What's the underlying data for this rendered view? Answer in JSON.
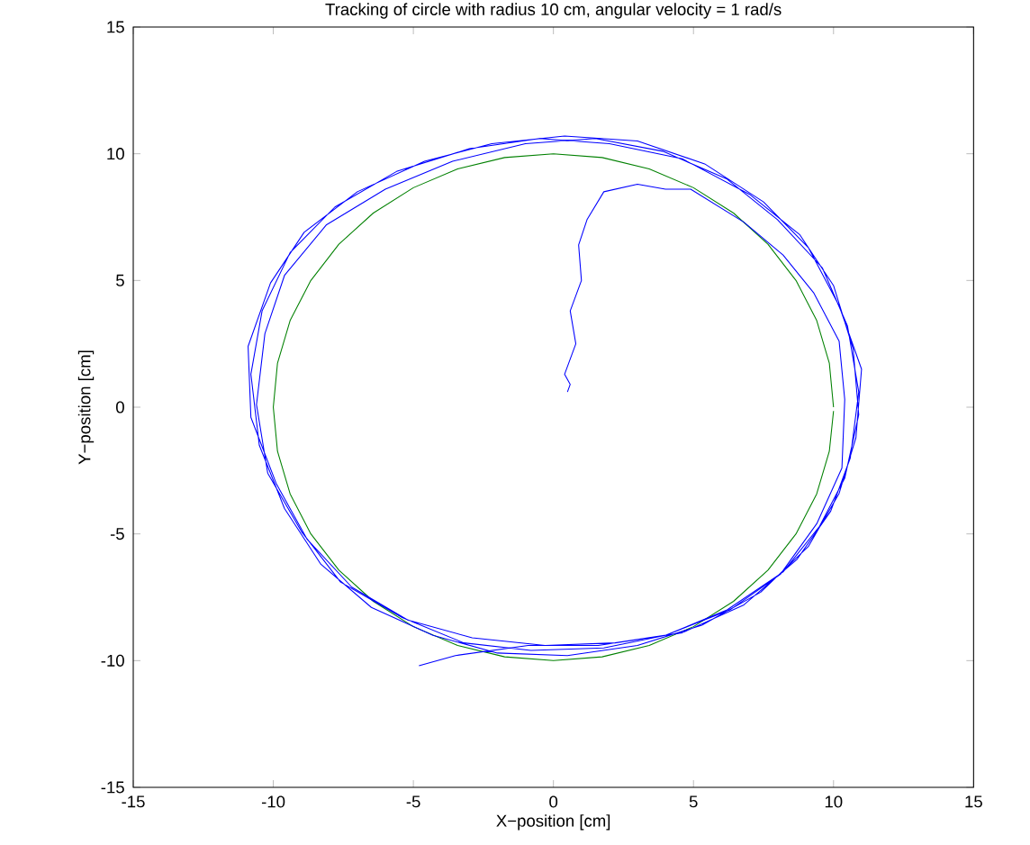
{
  "chart_data": {
    "type": "line",
    "title": "Tracking of circle with radius 10 cm, angular velocity = 1 rad/s",
    "xlabel": "X−position [cm]",
    "ylabel": "Y−position [cm]",
    "xlim": [
      -15,
      15
    ],
    "ylim": [
      -15,
      15
    ],
    "xticks": [
      -15,
      -10,
      -5,
      0,
      5,
      10,
      15
    ],
    "yticks": [
      -15,
      -10,
      -5,
      0,
      5,
      10,
      15
    ],
    "grid": false,
    "marker": "none",
    "line_style": "solid",
    "series": [
      {
        "color": "#008000",
        "x": [
          10,
          9.85,
          9.4,
          8.66,
          7.66,
          6.43,
          5.0,
          3.42,
          1.74,
          0,
          -1.74,
          -3.42,
          -5.0,
          -6.43,
          -7.66,
          -8.66,
          -9.4,
          -9.85,
          -10,
          -9.85,
          -9.4,
          -8.66,
          -7.66,
          -6.43,
          -5.0,
          -3.42,
          -1.74,
          0,
          1.74,
          3.42,
          5.0,
          6.43,
          7.66,
          8.66,
          9.4,
          9.85,
          10
        ],
        "values": [
          0,
          1.74,
          3.42,
          5.0,
          6.43,
          7.66,
          8.66,
          9.4,
          9.85,
          10,
          9.85,
          9.4,
          8.66,
          7.66,
          6.43,
          5.0,
          3.42,
          1.74,
          0,
          -1.74,
          -3.42,
          -5.0,
          -6.43,
          -7.66,
          -8.66,
          -9.4,
          -9.85,
          -10,
          -9.85,
          -9.4,
          -8.66,
          -7.66,
          -6.43,
          -5.0,
          -3.42,
          -1.74,
          -0.15
        ]
      },
      {
        "color": "#0000ff",
        "x": [
          0.5,
          0.6,
          0.4,
          0.8,
          0.6,
          1.0,
          0.9,
          1.2,
          1.8,
          3.0,
          4.0,
          4.9,
          6.8,
          8.2,
          9.3,
          10.2,
          10.4,
          10.3,
          9.4,
          8.1,
          6.3,
          4.0,
          1.8,
          -0.8,
          -3.2,
          -5.4,
          -7.6,
          -9.0,
          -10.2,
          -10.6,
          -10.3,
          -9.6,
          -8.1,
          -6.0,
          -3.6,
          -1.0,
          1.5,
          3.9,
          6.2,
          8.0,
          9.6,
          10.5,
          10.9,
          10.6,
          9.9,
          8.7,
          6.8,
          4.6,
          2.2,
          -0.3,
          -2.9,
          -5.2,
          -7.2,
          -8.8,
          -9.9,
          -10.8,
          -10.9,
          -10.1,
          -8.9,
          -7.0,
          -4.6,
          -2.2,
          0.4,
          3.0,
          5.4,
          7.5,
          9.1,
          10.2,
          11.0,
          10.8,
          10.2,
          9.1,
          7.4,
          5.3,
          3.0,
          0.5,
          -2.0,
          -4.3,
          -6.5,
          -8.3,
          -9.6,
          -10.5,
          -10.8,
          -10.4,
          -9.4,
          -7.8,
          -5.6,
          -3.0,
          -0.5,
          2.0,
          4.6,
          7.0,
          8.8,
          10.0,
          10.7,
          10.9,
          10.4,
          9.5,
          8.2,
          6.2,
          4.0,
          1.6,
          -0.9,
          -3.5,
          -4.8
        ],
        "values": [
          0.6,
          0.9,
          1.3,
          2.5,
          3.8,
          5.0,
          6.4,
          7.4,
          8.5,
          8.8,
          8.6,
          8.6,
          7.3,
          6.0,
          4.5,
          2.6,
          0.3,
          -2.4,
          -4.6,
          -6.6,
          -8.0,
          -9.0,
          -9.5,
          -9.6,
          -9.3,
          -8.3,
          -6.9,
          -4.9,
          -2.6,
          0.1,
          2.9,
          5.2,
          7.2,
          8.6,
          9.7,
          10.4,
          10.6,
          10.1,
          9.0,
          7.4,
          5.5,
          3.2,
          0.6,
          -2.0,
          -4.1,
          -6.0,
          -7.8,
          -8.9,
          -9.3,
          -9.4,
          -9.1,
          -8.4,
          -7.1,
          -5.2,
          -3.0,
          -0.4,
          2.4,
          4.9,
          6.9,
          8.5,
          9.7,
          10.4,
          10.7,
          10.5,
          9.6,
          8.1,
          6.3,
          4.0,
          1.5,
          -1.2,
          -3.4,
          -5.5,
          -7.3,
          -8.6,
          -9.4,
          -9.8,
          -9.7,
          -9.0,
          -7.9,
          -6.2,
          -4.0,
          -1.5,
          1.3,
          3.8,
          6.1,
          7.9,
          9.3,
          10.2,
          10.6,
          10.4,
          9.8,
          8.4,
          6.8,
          4.8,
          2.3,
          -0.3,
          -2.8,
          -4.7,
          -6.5,
          -8.0,
          -9.0,
          -9.4,
          -9.4,
          -9.8,
          -10.2
        ]
      }
    ]
  }
}
